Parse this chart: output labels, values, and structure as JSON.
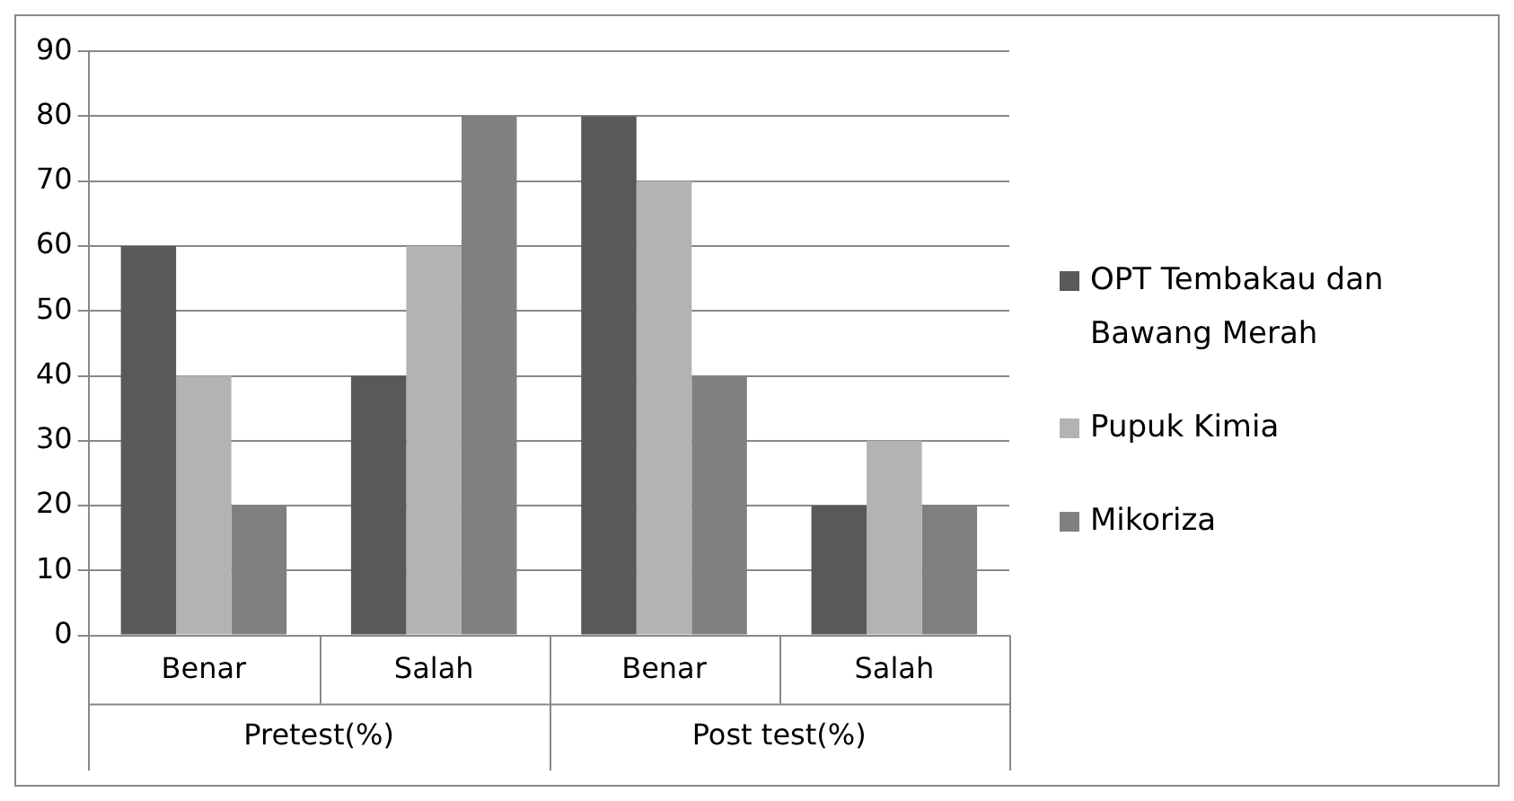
{
  "chart_data": {
    "type": "bar",
    "categories": [
      "Benar",
      "Salah",
      "Benar",
      "Salah"
    ],
    "series": [
      {
        "name": "OPT Tembakau dan Bawang Merah",
        "color": "#595959",
        "values": [
          60,
          40,
          80,
          20
        ]
      },
      {
        "name": "Pupuk Kimia",
        "color": "#b3b3b3",
        "values": [
          40,
          60,
          70,
          30
        ]
      },
      {
        "name": "Mikoriza",
        "color": "#808080",
        "values": [
          20,
          80,
          40,
          20
        ]
      }
    ],
    "annotations": [
      "Pretest(%)",
      "Post test(%)"
    ],
    "ylim": [
      0,
      90
    ],
    "yticks": [
      0,
      10,
      20,
      30,
      40,
      50,
      60,
      70,
      80,
      90
    ],
    "grid": "y",
    "legend": "right"
  }
}
